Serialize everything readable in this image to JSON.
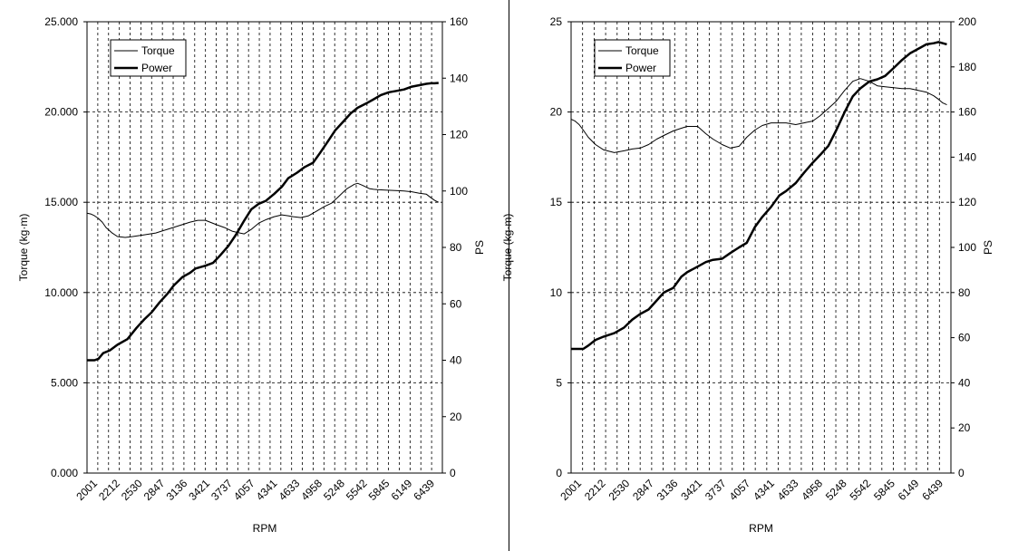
{
  "chart_data": [
    {
      "type": "line",
      "xlabel": "RPM",
      "ylabel": "Torque (kg·m)",
      "y2label": "PS",
      "x_range": [
        2001,
        6650
      ],
      "x_tick_labels": [
        "2001",
        "2212",
        "2530",
        "2847",
        "3136",
        "3421",
        "3737",
        "4057",
        "4341",
        "4633",
        "4958",
        "5248",
        "5542",
        "5845",
        "6149",
        "6439"
      ],
      "ylim": [
        0,
        25
      ],
      "y_ticks": [
        0,
        5,
        10,
        15,
        20,
        25
      ],
      "y_tick_labels": [
        "0.000",
        "5.000",
        "10.000",
        "15.000",
        "20.000",
        "25.000"
      ],
      "y2lim": [
        0,
        160
      ],
      "y2_ticks": [
        0,
        20,
        40,
        60,
        80,
        100,
        120,
        140,
        160
      ],
      "grid": "dashed",
      "legend_position": "top-left",
      "series": [
        {
          "name": "Torque",
          "axis": "left",
          "line": "thin",
          "x": [
            2001,
            2050,
            2100,
            2150,
            2200,
            2250,
            2330,
            2400,
            2500,
            2600,
            2750,
            2900,
            3050,
            3200,
            3350,
            3450,
            3550,
            3700,
            3800,
            3900,
            4000,
            4057,
            4150,
            4250,
            4350,
            4450,
            4550,
            4633,
            4700,
            4800,
            4900,
            5000,
            5100,
            5200,
            5300,
            5400,
            5500,
            5542,
            5600,
            5700,
            5750,
            5800,
            5900,
            6000,
            6100,
            6149,
            6250,
            6350,
            6439,
            6500,
            6550,
            6600
          ],
          "values": [
            14.4,
            14.35,
            14.25,
            14.1,
            13.9,
            13.6,
            13.3,
            13.1,
            13.05,
            13.1,
            13.2,
            13.3,
            13.5,
            13.7,
            13.9,
            14.0,
            14.0,
            13.75,
            13.6,
            13.4,
            13.3,
            13.25,
            13.5,
            13.85,
            14.05,
            14.2,
            14.3,
            14.25,
            14.2,
            14.15,
            14.25,
            14.5,
            14.75,
            14.95,
            15.35,
            15.75,
            16.0,
            16.05,
            15.95,
            15.75,
            15.72,
            15.7,
            15.68,
            15.66,
            15.64,
            15.62,
            15.58,
            15.5,
            15.45,
            15.25,
            15.1,
            15.0
          ]
        },
        {
          "name": "Power",
          "axis": "right",
          "line": "thick",
          "x": [
            2001,
            2050,
            2100,
            2150,
            2212,
            2300,
            2400,
            2530,
            2650,
            2750,
            2847,
            2950,
            3050,
            3136,
            3250,
            3350,
            3421,
            3550,
            3650,
            3737,
            3850,
            3950,
            4057,
            4150,
            4250,
            4341,
            4450,
            4550,
            4633,
            4750,
            4850,
            4958,
            5050,
            5150,
            5248,
            5350,
            5450,
            5542,
            5650,
            5750,
            5845,
            5950,
            6050,
            6149,
            6250,
            6350,
            6439,
            6500,
            6550,
            6600
          ],
          "values": [
            40.0,
            40.0,
            40.0,
            40.5,
            42.5,
            43.5,
            45.5,
            47.5,
            51.5,
            54.5,
            57.0,
            60.5,
            63.5,
            66.5,
            69.5,
            71.0,
            72.5,
            73.5,
            74.5,
            77.0,
            80.5,
            84.5,
            89.5,
            93.5,
            95.5,
            96.5,
            99.0,
            101.5,
            104.5,
            106.5,
            108.5,
            110.0,
            113.5,
            117.5,
            121.5,
            124.5,
            127.5,
            129.5,
            131.0,
            132.5,
            134.0,
            135.0,
            135.5,
            136.0,
            137.0,
            137.5,
            138.0,
            138.2,
            138.2,
            138.3
          ]
        }
      ]
    },
    {
      "type": "line",
      "xlabel": "RPM",
      "ylabel": "Torque (kg·m)",
      "y2label": "PS",
      "x_range": [
        2001,
        6650
      ],
      "x_tick_labels": [
        "2001",
        "2212",
        "2530",
        "2847",
        "3136",
        "3421",
        "3737",
        "4057",
        "4341",
        "4633",
        "4958",
        "5248",
        "5542",
        "5845",
        "6149",
        "6439"
      ],
      "ylim": [
        0,
        25
      ],
      "y_ticks": [
        0,
        5,
        10,
        15,
        20,
        25
      ],
      "y_tick_labels": [
        "0",
        "5",
        "10",
        "15",
        "20",
        "25"
      ],
      "y2lim": [
        0,
        200
      ],
      "y2_ticks": [
        0,
        20,
        40,
        60,
        80,
        100,
        120,
        140,
        160,
        180,
        200
      ],
      "grid": "dashed",
      "legend_position": "top-left",
      "series": [
        {
          "name": "Torque",
          "axis": "left",
          "line": "thin",
          "x": [
            2001,
            2050,
            2100,
            2150,
            2212,
            2300,
            2400,
            2530,
            2650,
            2750,
            2847,
            2950,
            3050,
            3136,
            3250,
            3350,
            3421,
            3550,
            3650,
            3737,
            3850,
            3950,
            4057,
            4150,
            4250,
            4341,
            4450,
            4550,
            4633,
            4750,
            4850,
            4958,
            5050,
            5150,
            5248,
            5350,
            5450,
            5542,
            5650,
            5750,
            5845,
            5950,
            6050,
            6149,
            6250,
            6350,
            6439,
            6500,
            6550,
            6600
          ],
          "values": [
            19.6,
            19.5,
            19.3,
            19.0,
            18.6,
            18.2,
            17.9,
            17.75,
            17.85,
            17.95,
            18.0,
            18.2,
            18.5,
            18.7,
            18.95,
            19.1,
            19.2,
            19.2,
            18.8,
            18.5,
            18.2,
            18.0,
            18.1,
            18.6,
            19.0,
            19.25,
            19.4,
            19.4,
            19.4,
            19.3,
            19.4,
            19.5,
            19.8,
            20.2,
            20.6,
            21.2,
            21.7,
            21.85,
            21.7,
            21.45,
            21.4,
            21.35,
            21.3,
            21.3,
            21.2,
            21.1,
            20.9,
            20.7,
            20.5,
            20.4
          ]
        },
        {
          "name": "Power",
          "axis": "right",
          "line": "thick",
          "x": [
            2001,
            2050,
            2100,
            2150,
            2212,
            2300,
            2400,
            2530,
            2650,
            2750,
            2847,
            2950,
            3050,
            3136,
            3250,
            3350,
            3421,
            3550,
            3650,
            3737,
            3850,
            3950,
            4057,
            4150,
            4250,
            4341,
            4450,
            4550,
            4633,
            4750,
            4850,
            4958,
            5050,
            5150,
            5248,
            5350,
            5450,
            5542,
            5650,
            5750,
            5845,
            5950,
            6050,
            6149,
            6250,
            6350,
            6439,
            6500,
            6550,
            6600
          ],
          "values": [
            55.0,
            55.0,
            55.0,
            55.0,
            56.5,
            59.0,
            60.5,
            62.0,
            64.5,
            68.0,
            70.5,
            72.5,
            76.5,
            80.0,
            82.0,
            87.0,
            89.0,
            91.5,
            93.5,
            94.5,
            95.0,
            97.5,
            100.0,
            102.0,
            109.0,
            113.5,
            118.0,
            123.0,
            125.0,
            128.5,
            133.0,
            137.5,
            141.0,
            145.0,
            152.0,
            160.0,
            167.0,
            170.5,
            173.5,
            174.5,
            176.0,
            179.5,
            183.0,
            186.0,
            188.0,
            190.0,
            190.5,
            191.0,
            190.5,
            190.0
          ]
        }
      ]
    }
  ]
}
